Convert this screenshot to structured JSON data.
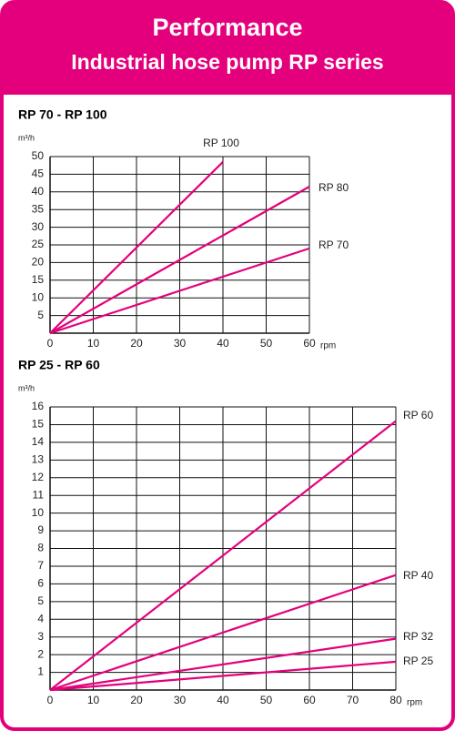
{
  "header": {
    "title": "Performance",
    "subtitle": "Industrial hose pump RP series"
  },
  "chart_data": [
    {
      "type": "line",
      "title": "RP 70 - RP 100",
      "y_label": "m³/h",
      "x_label": "rpm",
      "xlim": [
        0,
        60
      ],
      "xticks": [
        0,
        10,
        20,
        30,
        40,
        50,
        60
      ],
      "ylim": [
        0,
        50
      ],
      "yticks": [
        5,
        10,
        15,
        20,
        25,
        30,
        35,
        40,
        45,
        50
      ],
      "grid": true,
      "series": [
        {
          "name": "RP 100",
          "color": "#e4007c",
          "x": [
            0,
            40
          ],
          "values": [
            0,
            48.5
          ]
        },
        {
          "name": "RP 80",
          "color": "#e4007c",
          "x": [
            0,
            60
          ],
          "values": [
            0,
            41.5
          ]
        },
        {
          "name": "RP 70",
          "color": "#e4007c",
          "x": [
            0,
            60
          ],
          "values": [
            0,
            24
          ]
        }
      ]
    },
    {
      "type": "line",
      "title": "RP 25 - RP 60",
      "y_label": "m³/h",
      "x_label": "rpm",
      "xlim": [
        0,
        80
      ],
      "xticks": [
        0,
        10,
        20,
        30,
        40,
        50,
        60,
        70,
        80
      ],
      "ylim": [
        0,
        16
      ],
      "yticks": [
        1,
        2,
        3,
        4,
        5,
        6,
        7,
        8,
        9,
        10,
        11,
        12,
        13,
        14,
        15,
        16
      ],
      "grid": true,
      "series": [
        {
          "name": "RP 60",
          "color": "#e4007c",
          "x": [
            0,
            80
          ],
          "values": [
            0,
            15.2
          ]
        },
        {
          "name": "RP 40",
          "color": "#e4007c",
          "x": [
            0,
            80
          ],
          "values": [
            0,
            6.5
          ]
        },
        {
          "name": "RP 32",
          "color": "#e4007c",
          "x": [
            0,
            80
          ],
          "values": [
            0,
            2.9
          ]
        },
        {
          "name": "RP 25",
          "color": "#e4007c",
          "x": [
            0,
            80
          ],
          "values": [
            0,
            1.6
          ]
        }
      ]
    }
  ]
}
